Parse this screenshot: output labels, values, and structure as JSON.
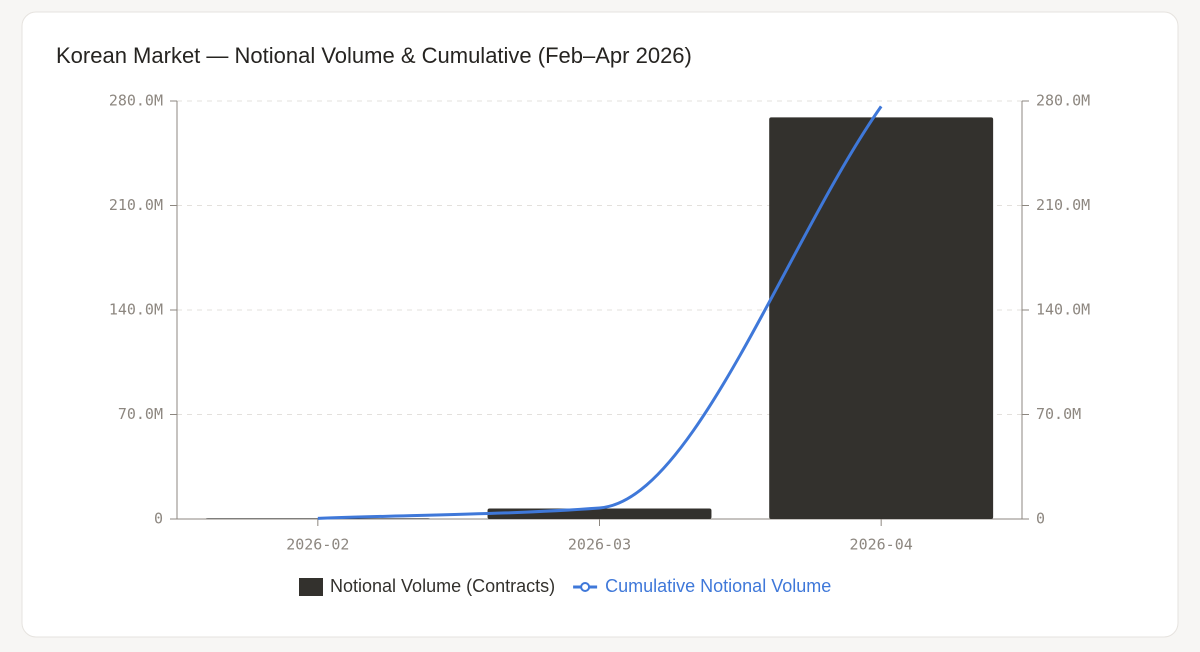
{
  "chart_data": {
    "type": "bar_line",
    "title": "Korean Market — Notional Volume & Cumulative (Feb–Apr 2026)",
    "categories": [
      "2026-02",
      "2026-03",
      "2026-04"
    ],
    "series": [
      {
        "name": "Notional Volume (Contracts)",
        "type": "bar",
        "color": "#33312d",
        "values": [
          0.4,
          7,
          269
        ]
      },
      {
        "name": "Cumulative Notional Volume",
        "type": "line",
        "axis": "y2",
        "color": "#3f78d9",
        "values": [
          0.4,
          7.4,
          276.4
        ]
      }
    ],
    "ylim": [
      0,
      280
    ],
    "yticks": [
      0,
      {
        "value": 70,
        "label": "70.0M"
      },
      {
        "value": 140,
        "label": "140.0M"
      },
      {
        "value": 210,
        "label": "210.0M"
      },
      {
        "value": 280,
        "label": "280.0M"
      }
    ],
    "y2lim": [
      0,
      280
    ],
    "y2ticks": [
      0,
      {
        "value": 70,
        "label": "70.0M"
      },
      {
        "value": 140,
        "label": "140.0M"
      },
      {
        "value": 210,
        "label": "210.0M"
      },
      {
        "value": 280,
        "label": "280.0M"
      }
    ],
    "grid": true,
    "legend": "bottom"
  }
}
